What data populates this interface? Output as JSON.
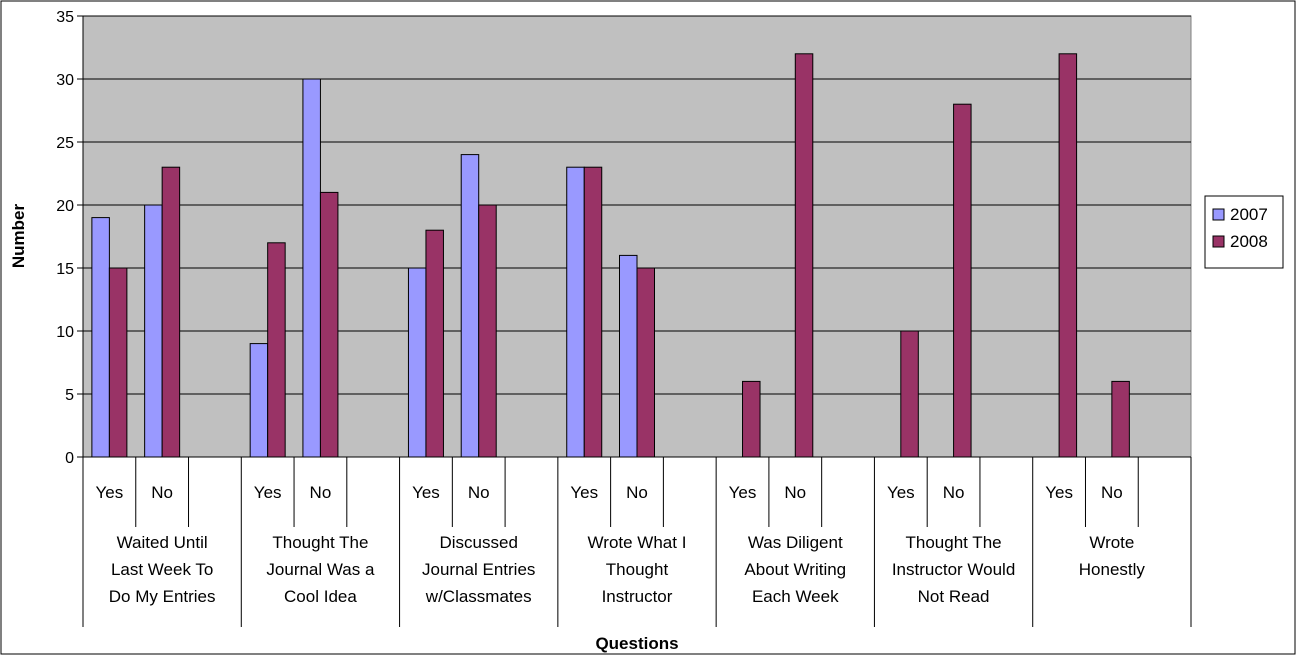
{
  "chart_data": {
    "type": "bar",
    "xlabel": "Questions",
    "ylabel": "Number",
    "ylim": [
      0,
      35
    ],
    "yticks": [
      0,
      5,
      10,
      15,
      20,
      25,
      30,
      35
    ],
    "grid": true,
    "legend_position": "right",
    "groups": [
      {
        "lines": [
          "Waited Until",
          "Last Week To",
          "Do My Entries"
        ],
        "subcategories": [
          "Yes",
          "No"
        ]
      },
      {
        "lines": [
          "Thought The",
          "Journal Was a",
          "Cool Idea"
        ],
        "subcategories": [
          "Yes",
          "No"
        ]
      },
      {
        "lines": [
          "Discussed",
          "Journal Entries",
          "w/Classmates"
        ],
        "subcategories": [
          "Yes",
          "No"
        ]
      },
      {
        "lines": [
          "Wrote What I",
          "Thought",
          "Instructor"
        ],
        "subcategories": [
          "Yes",
          "No"
        ]
      },
      {
        "lines": [
          "Was Diligent",
          "About Writing",
          "Each Week"
        ],
        "subcategories": [
          "Yes",
          "No"
        ]
      },
      {
        "lines": [
          "Thought The",
          "Instructor Would",
          "Not Read"
        ],
        "subcategories": [
          "Yes",
          "No"
        ]
      },
      {
        "lines": [
          "Wrote",
          "Honestly"
        ],
        "subcategories": [
          "Yes",
          "No"
        ]
      }
    ],
    "series": [
      {
        "name": "2007",
        "color": "#9999ff",
        "values": [
          19,
          20,
          9,
          30,
          15,
          24,
          23,
          16,
          0,
          0,
          0,
          0,
          0,
          0
        ]
      },
      {
        "name": "2008",
        "color": "#993366",
        "values": [
          15,
          23,
          17,
          21,
          18,
          20,
          23,
          15,
          6,
          32,
          10,
          28,
          32,
          6
        ]
      }
    ]
  }
}
